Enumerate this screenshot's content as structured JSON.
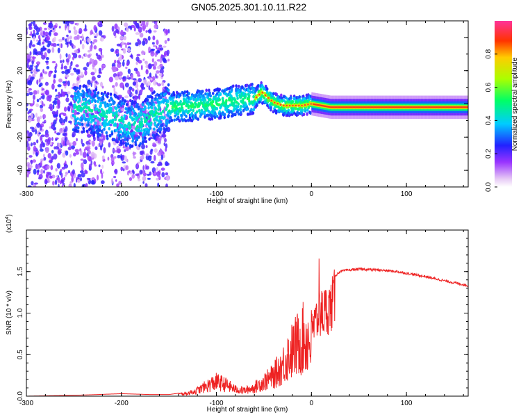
{
  "title": "GN05.2025.301.10.11.R22",
  "chart_data": [
    {
      "type": "heatmap",
      "title": "GN05.2025.301.10.11.R22",
      "xlabel": "Height of straight line (km)",
      "ylabel": "Frequency (Hz)",
      "xlim": [
        -300,
        165
      ],
      "ylim": [
        -50,
        50
      ],
      "xticks": [
        -300,
        -200,
        -100,
        0,
        100
      ],
      "yticks": [
        -40,
        -20,
        0,
        20,
        40
      ],
      "colorbar": {
        "label": "Normalized spectral amplitude",
        "range": [
          0.0,
          1.0
        ],
        "ticks": [
          0.0,
          0.2,
          0.4,
          0.6,
          0.8
        ],
        "tick_labels": [
          "0.0",
          "0.2",
          "0.4",
          "0.6",
          "0.8"
        ]
      },
      "ridge": {
        "x": [
          -240,
          -210,
          -185,
          -160,
          -150,
          -120,
          -100,
          -80,
          -60,
          -52,
          -40,
          -30,
          -20,
          -10,
          0,
          20,
          50,
          100,
          165
        ],
        "y": [
          -3,
          -8,
          -13,
          -5,
          -2,
          -1,
          0,
          2,
          3,
          7,
          1,
          -1,
          -1,
          -1,
          0,
          -2,
          -2,
          -2,
          -2
        ]
      }
    },
    {
      "type": "line",
      "xlabel": "Height of straight line (km)",
      "ylabel": "SNR (10 * v/v)",
      "y_multiplier": "(x10",
      "y_multiplier_exp": "4",
      "multiplier_suffix": ")",
      "xlim": [
        -300,
        165
      ],
      "ylim": [
        0.0,
        2.0
      ],
      "xticks": [
        -300,
        -200,
        -100,
        0,
        100
      ],
      "yticks": [
        0.0,
        0.5,
        1.0,
        1.5
      ],
      "ytick_labels": [
        "0.0",
        "0.5",
        "1.0",
        "1.5"
      ],
      "series": [
        {
          "name": "SNR",
          "color": "#ee2222",
          "x": [
            -300,
            -250,
            -200,
            -170,
            -150,
            -130,
            -120,
            -110,
            -100,
            -90,
            -80,
            -70,
            -60,
            -50,
            -40,
            -30,
            -25,
            -20,
            -15,
            -10,
            -5,
            0,
            5,
            10,
            15,
            20,
            25,
            30,
            40,
            50,
            70,
            90,
            100,
            120,
            140,
            165
          ],
          "y": [
            0.0,
            0.01,
            0.03,
            0.02,
            0.02,
            0.05,
            0.1,
            0.18,
            0.25,
            0.2,
            0.12,
            0.1,
            0.15,
            0.25,
            0.35,
            0.55,
            0.7,
            0.8,
            0.9,
            1.0,
            1.0,
            0.95,
            1.1,
            1.2,
            1.25,
            1.3,
            1.45,
            1.5,
            1.52,
            1.53,
            1.52,
            1.5,
            1.48,
            1.44,
            1.39,
            1.33
          ]
        }
      ]
    }
  ]
}
